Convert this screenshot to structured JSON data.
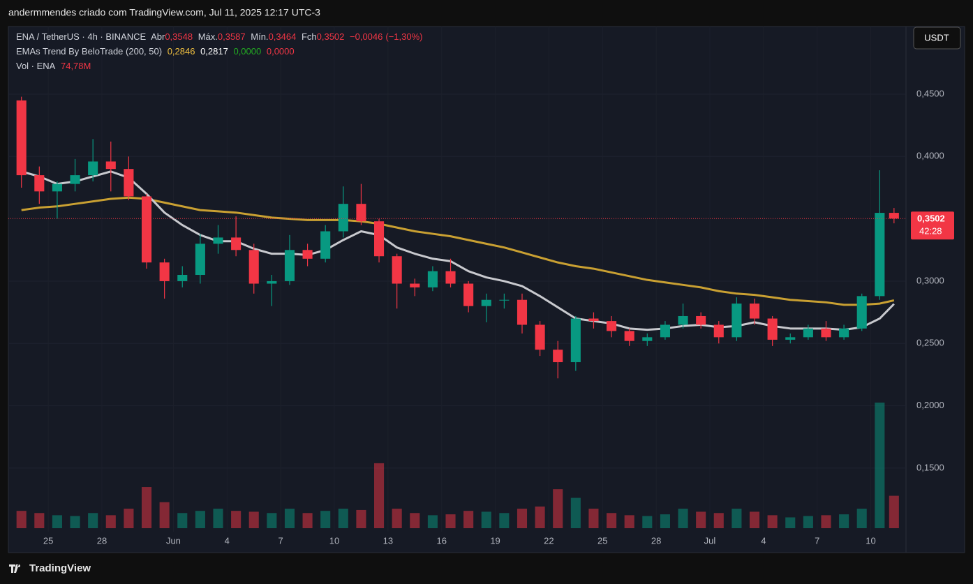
{
  "header": {
    "caption": "andermmendes criado com TradingView.com, Jul 11, 2025 12:17 UTC-3"
  },
  "footer": {
    "logo": "TradingView"
  },
  "chart_data": {
    "type": "candlestick",
    "legend": {
      "symbol": "ENA / TetherUS · 4h · BINANCE",
      "open_label": "Abr",
      "open": {
        "value": 0.3548,
        "label": "0,3548"
      },
      "high_label": "Máx.",
      "high": {
        "value": 0.3587,
        "label": "0,3587"
      },
      "low_label": "Mín.",
      "low": {
        "value": 0.3464,
        "label": "0,3464"
      },
      "close_label": "Fch",
      "close": {
        "value": 0.3502,
        "label": "0,3502"
      },
      "change": {
        "value": -0.0046,
        "label": "−0,0046"
      },
      "change_pct": {
        "value": -1.3,
        "label": "(−1,30%)"
      },
      "indicator": "EMAs Trend By BeloTrade (200, 50)",
      "indicator_values": [
        {
          "value": 0.2846,
          "label": "0,2846"
        },
        {
          "value": 0.2817,
          "label": "0,2817"
        },
        {
          "value": 0,
          "label": "0,0000"
        },
        {
          "value": 0,
          "label": "0,0000"
        }
      ],
      "volume_name": "Vol · ENA",
      "volume": {
        "value": 74.78,
        "label": "74,78M"
      }
    },
    "currency_button": "USDT",
    "last_price": {
      "value": 0.3502,
      "label": "0,3502"
    },
    "countdown": "42:28",
    "x": [
      -1.5,
      -0.5,
      0.5,
      1.5,
      2.5,
      3.5,
      4.5,
      5.5,
      6.5,
      7.5,
      8.5,
      9.5,
      10.5,
      11.5,
      12.5,
      13.5,
      14.5,
      15.5,
      16.5,
      17.5,
      18.5,
      19.5,
      20.5,
      21.5,
      22.5,
      23.5,
      24.5,
      25.5,
      26.5,
      27.5,
      28.5,
      29.5,
      30.5,
      31.5,
      32.5,
      33.5,
      34.5,
      35.5,
      36.5,
      37.5,
      38.5,
      39.5,
      40.5,
      41.5,
      42.5,
      43.5,
      44.5,
      45.5,
      46.5,
      47.3
    ],
    "open": [
      0.445,
      0.385,
      0.372,
      0.378,
      0.385,
      0.396,
      0.39,
      0.368,
      0.315,
      0.3,
      0.305,
      0.33,
      0.335,
      0.325,
      0.298,
      0.3,
      0.325,
      0.318,
      0.34,
      0.362,
      0.348,
      0.32,
      0.298,
      0.295,
      0.308,
      0.298,
      0.28,
      0.285,
      0.285,
      0.265,
      0.245,
      0.235,
      0.27,
      0.268,
      0.26,
      0.252,
      0.255,
      0.265,
      0.272,
      0.265,
      0.255,
      0.282,
      0.27,
      0.253,
      0.255,
      0.262,
      0.255,
      0.262,
      0.288,
      0.3548
    ],
    "high": [
      0.448,
      0.392,
      0.38,
      0.398,
      0.414,
      0.412,
      0.4,
      0.37,
      0.318,
      0.312,
      0.338,
      0.345,
      0.352,
      0.33,
      0.305,
      0.337,
      0.33,
      0.345,
      0.376,
      0.378,
      0.35,
      0.322,
      0.302,
      0.312,
      0.318,
      0.3,
      0.29,
      0.29,
      0.29,
      0.268,
      0.252,
      0.272,
      0.275,
      0.272,
      0.262,
      0.258,
      0.268,
      0.282,
      0.275,
      0.268,
      0.287,
      0.286,
      0.272,
      0.258,
      0.265,
      0.268,
      0.265,
      0.29,
      0.389,
      0.3587
    ],
    "low": [
      0.375,
      0.362,
      0.35,
      0.372,
      0.38,
      0.372,
      0.365,
      0.31,
      0.286,
      0.295,
      0.298,
      0.322,
      0.32,
      0.29,
      0.28,
      0.297,
      0.312,
      0.315,
      0.335,
      0.345,
      0.315,
      0.278,
      0.288,
      0.292,
      0.295,
      0.275,
      0.267,
      0.278,
      0.258,
      0.24,
      0.222,
      0.228,
      0.262,
      0.255,
      0.248,
      0.248,
      0.253,
      0.262,
      0.262,
      0.25,
      0.252,
      0.265,
      0.248,
      0.25,
      0.253,
      0.252,
      0.253,
      0.26,
      0.285,
      0.3464
    ],
    "close": [
      0.385,
      0.372,
      0.378,
      0.385,
      0.396,
      0.39,
      0.368,
      0.315,
      0.3,
      0.305,
      0.33,
      0.335,
      0.325,
      0.298,
      0.3,
      0.325,
      0.318,
      0.34,
      0.362,
      0.348,
      0.32,
      0.298,
      0.295,
      0.308,
      0.298,
      0.28,
      0.285,
      0.285,
      0.265,
      0.245,
      0.235,
      0.27,
      0.268,
      0.26,
      0.252,
      0.255,
      0.265,
      0.272,
      0.265,
      0.255,
      0.282,
      0.27,
      0.253,
      0.255,
      0.262,
      0.255,
      0.262,
      0.288,
      0.3548,
      0.3502
    ],
    "volume": [
      40,
      35,
      30,
      28,
      35,
      30,
      45,
      95,
      60,
      35,
      40,
      45,
      40,
      38,
      35,
      45,
      35,
      40,
      45,
      42,
      150,
      45,
      35,
      30,
      32,
      40,
      38,
      35,
      45,
      50,
      90,
      70,
      45,
      35,
      30,
      28,
      32,
      45,
      38,
      35,
      45,
      38,
      30,
      25,
      28,
      30,
      32,
      45,
      290,
      74.78
    ],
    "up_color": "#089981",
    "down_color": "#f23645",
    "ema_lines": [
      {
        "color": "#c9a032",
        "values": [
          0.357,
          0.359,
          0.36,
          0.362,
          0.364,
          0.366,
          0.367,
          0.366,
          0.363,
          0.36,
          0.357,
          0.356,
          0.355,
          0.353,
          0.351,
          0.35,
          0.349,
          0.349,
          0.349,
          0.348,
          0.346,
          0.343,
          0.34,
          0.338,
          0.336,
          0.333,
          0.33,
          0.327,
          0.323,
          0.319,
          0.315,
          0.312,
          0.31,
          0.307,
          0.304,
          0.301,
          0.299,
          0.297,
          0.295,
          0.292,
          0.29,
          0.289,
          0.287,
          0.285,
          0.284,
          0.283,
          0.281,
          0.281,
          0.282,
          0.2846
        ]
      },
      {
        "color": "#c8c9ce",
        "values": [
          0.388,
          0.384,
          0.378,
          0.38,
          0.384,
          0.388,
          0.383,
          0.37,
          0.355,
          0.345,
          0.337,
          0.332,
          0.332,
          0.326,
          0.322,
          0.322,
          0.321,
          0.325,
          0.333,
          0.34,
          0.337,
          0.327,
          0.322,
          0.318,
          0.316,
          0.308,
          0.303,
          0.3,
          0.296,
          0.288,
          0.279,
          0.27,
          0.268,
          0.266,
          0.262,
          0.261,
          0.262,
          0.264,
          0.265,
          0.263,
          0.264,
          0.267,
          0.264,
          0.262,
          0.262,
          0.262,
          0.261,
          0.263,
          0.27,
          0.2817
        ]
      }
    ],
    "xlim": [
      -2.23,
      47.97
    ],
    "xticks": [
      {
        "value": 0,
        "label": "25"
      },
      {
        "value": 3,
        "label": "28"
      },
      {
        "value": 7,
        "label": "Jun"
      },
      {
        "value": 10,
        "label": "4"
      },
      {
        "value": 13,
        "label": "7"
      },
      {
        "value": 16,
        "label": "10"
      },
      {
        "value": 19,
        "label": "13"
      },
      {
        "value": 22,
        "label": "16"
      },
      {
        "value": 25,
        "label": "19"
      },
      {
        "value": 28,
        "label": "22"
      },
      {
        "value": 31,
        "label": "25"
      },
      {
        "value": 34,
        "label": "28"
      },
      {
        "value": 37,
        "label": "Jul"
      },
      {
        "value": 40,
        "label": "4"
      },
      {
        "value": 43,
        "label": "7"
      },
      {
        "value": 46,
        "label": "10"
      }
    ],
    "ylim": [
      0.0822,
      0.5043
    ],
    "yticks": [
      {
        "value": 0.15,
        "label": "0,1500"
      },
      {
        "value": 0.2,
        "label": "0,2000"
      },
      {
        "value": 0.25,
        "label": "0,2500"
      },
      {
        "value": 0.3,
        "label": "0,3000"
      },
      {
        "value": 0.4,
        "label": "0,4000"
      },
      {
        "value": 0.45,
        "label": "0,4500"
      }
    ],
    "grid": true
  }
}
